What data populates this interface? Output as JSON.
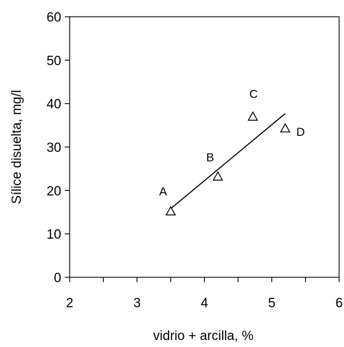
{
  "chart_data": {
    "type": "scatter",
    "title": "",
    "xlabel": "vidrio + arcilla, %",
    "ylabel": "Sílice disuelta, mg/l",
    "xlim": [
      2,
      6
    ],
    "ylim": [
      0,
      60
    ],
    "x_ticks": [
      "2",
      "3",
      "4",
      "5",
      "6"
    ],
    "y_ticks": [
      "0",
      "10",
      "20",
      "30",
      "40",
      "50",
      "60"
    ],
    "grid": false,
    "legend": "none",
    "marker": "open-triangle",
    "points": [
      {
        "label": "A",
        "x": 3.5,
        "y": 15.2
      },
      {
        "label": "B",
        "x": 4.2,
        "y": 23.2
      },
      {
        "label": "C",
        "x": 4.72,
        "y": 37.0
      },
      {
        "label": "D",
        "x": 5.2,
        "y": 34.3
      }
    ],
    "trendline": {
      "x": [
        3.5,
        5.2
      ],
      "y": [
        15.8,
        37.7
      ]
    },
    "colors": {
      "marks": "#000000",
      "background": "#ffffff"
    }
  }
}
